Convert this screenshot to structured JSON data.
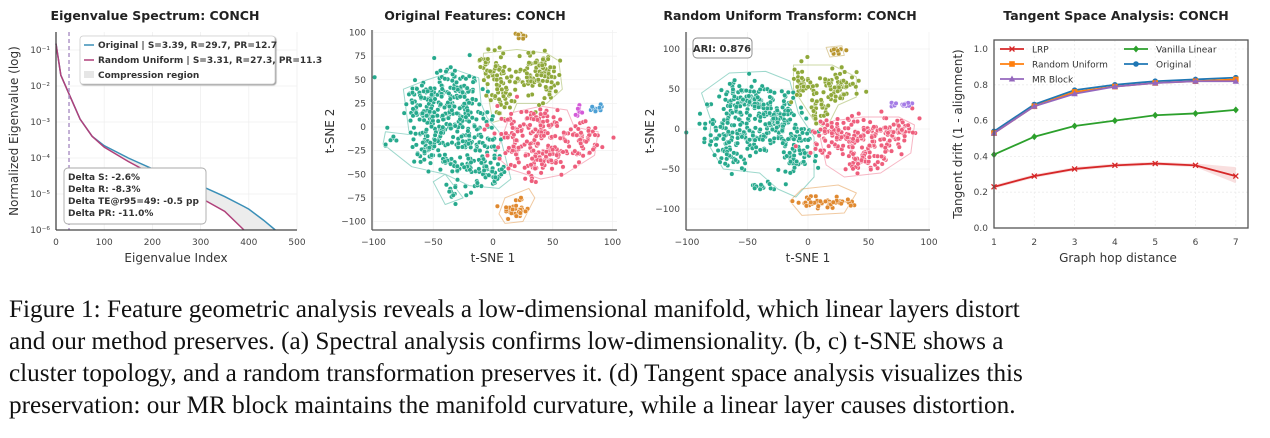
{
  "caption": {
    "lines": [
      "Figure 1: Feature geometric analysis reveals a low-dimensional manifold, which linear layers distort",
      "and our method preserves. (a) Spectral analysis confirms low-dimensionality. (b, c) t-SNE shows a",
      "cluster topology, and a random transformation preserves it. (d) Tangent space analysis visualizes this",
      "preservation: our MR block maintains the manifold curvature, while a linear layer causes distortion."
    ]
  },
  "panels": {
    "a": {
      "title": "Eigenvalue Spectrum: CONCH",
      "xlabel": "Eigenvalue Index",
      "ylabel": "Normalized Eigenvalue (log)",
      "xticks": [
        "0",
        "100",
        "200",
        "300",
        "400",
        "500"
      ],
      "yticks": [
        "10⁻¹",
        "10⁻²",
        "10⁻³",
        "10⁻⁴",
        "10⁻⁵",
        "10⁻⁶"
      ],
      "legend": [
        {
          "label": "Original | S=3.39, R=29.7, PR=12.7",
          "color": "#3a8fb7"
        },
        {
          "label": "Random Uniform | S=3.31, R=27.3, PR=11.3",
          "color": "#b0407a"
        },
        {
          "label": "Compression region",
          "color": "#e6e6e6"
        }
      ],
      "stats": [
        "Delta S: -2.6%",
        "Delta R: -8.3%",
        "Delta TE@r95=49: -0.5 pp",
        "Delta PR: -11.0%"
      ]
    },
    "b": {
      "title": "Original Features: CONCH",
      "xlabel": "t-SNE 1",
      "ylabel": "t-SNE 2",
      "xticks": [
        "−100",
        "−50",
        "0",
        "50",
        "100"
      ],
      "yticks": [
        "100",
        "75",
        "50",
        "25",
        "0",
        "−25",
        "−50",
        "−75",
        "−100"
      ]
    },
    "c": {
      "title": "Random Uniform Transform: CONCH",
      "xlabel": "t-SNE 1",
      "ylabel": "t-SNE 2",
      "xticks": [
        "−100",
        "−50",
        "0",
        "50",
        "100"
      ],
      "yticks": [
        "100",
        "50",
        "0",
        "−50",
        "−100"
      ],
      "ari": "ARI: 0.876"
    },
    "d": {
      "title": "Tangent Space Analysis: CONCH",
      "xlabel": "Graph hop distance",
      "ylabel": "Tangent drift (1 - alignment)",
      "xticks": [
        "1",
        "2",
        "3",
        "4",
        "5",
        "6",
        "7"
      ],
      "yticks": [
        "1.0",
        "0.8",
        "0.6",
        "0.4",
        "0.2",
        "0.0"
      ],
      "legend": [
        {
          "label": "LRP",
          "color": "#d62728",
          "marker": "x"
        },
        {
          "label": "Vanilla Linear",
          "color": "#2ca02c",
          "marker": "D"
        },
        {
          "label": "Random Uniform",
          "color": "#ff7f0e",
          "marker": "s"
        },
        {
          "label": "Original",
          "color": "#1f77b4",
          "marker": "o"
        },
        {
          "label": "MR Block",
          "color": "#9467bd",
          "marker": "^"
        }
      ]
    }
  },
  "chart_data": [
    {
      "type": "line",
      "title": "Eigenvalue Spectrum: CONCH",
      "xlabel": "Eigenvalue Index",
      "ylabel": "Normalized Eigenvalue (log)",
      "xlim": [
        0,
        500
      ],
      "ylim": [
        1e-06,
        0.3
      ],
      "yscale": "log",
      "vline_x": 27,
      "x": [
        0,
        10,
        27,
        50,
        75,
        100,
        150,
        200,
        250,
        300,
        350,
        390,
        400,
        430,
        455
      ],
      "series": [
        {
          "name": "Original | S=3.39, R=29.7, PR=12.7",
          "values": [
            0.15,
            0.02,
            0.006,
            0.0012,
            0.0004,
            0.00022,
            0.0001,
            5e-05,
            2.8e-05,
            1.7e-05,
            8.5e-06,
            4.5e-06,
            3.8e-06,
            1.9e-06,
            1e-06
          ]
        },
        {
          "name": "Random Uniform | S=3.31, R=27.3, PR=11.3",
          "values": [
            0.15,
            0.02,
            0.006,
            0.0012,
            0.0004,
            0.0002,
            8e-05,
            3.5e-05,
            1.6e-05,
            7.8e-06,
            3.3e-06,
            1e-06,
            null,
            null,
            null
          ]
        }
      ],
      "fill": "Compression region",
      "annotation": [
        "Delta S: -2.6%",
        "Delta R: -8.3%",
        "Delta TE@r95=49: -0.5 pp",
        "Delta PR: -11.0%"
      ],
      "legend_position": "upper right",
      "grid": true
    },
    {
      "type": "scatter",
      "title": "Original Features: CONCH",
      "xlabel": "t-SNE 1",
      "ylabel": "t-SNE 2",
      "xlim": [
        -100,
        100
      ],
      "ylim": [
        -105,
        100
      ],
      "clusters": [
        {
          "name": "teal",
          "color": "#26a98d",
          "center": [
            -40,
            5
          ],
          "approx_points": 700
        },
        {
          "name": "olive",
          "color": "#8fa83a",
          "center": [
            15,
            50
          ],
          "approx_points": 250
        },
        {
          "name": "pink",
          "color": "#ee5e7c",
          "center": [
            45,
            -15
          ],
          "approx_points": 450
        },
        {
          "name": "orange",
          "color": "#e0892f",
          "center": [
            18,
            -87
          ],
          "approx_points": 50
        },
        {
          "name": "gold",
          "color": "#b8952e",
          "center": [
            23,
            98
          ],
          "approx_points": 12
        },
        {
          "name": "magenta",
          "color": "#d45ad8",
          "center": [
            72,
            16
          ],
          "approx_points": 8
        },
        {
          "name": "blue",
          "color": "#4b9fd4",
          "center": [
            86,
            20
          ],
          "approx_points": 10
        }
      ]
    },
    {
      "type": "scatter",
      "title": "Random Uniform Transform: CONCH",
      "xlabel": "t-SNE 1",
      "ylabel": "t-SNE 2",
      "xlim": [
        -100,
        100
      ],
      "ylim": [
        -125,
        120
      ],
      "annotation": "ARI: 0.876",
      "clusters": [
        {
          "name": "teal",
          "color": "#26a98d",
          "center": [
            -45,
            0
          ],
          "approx_points": 700
        },
        {
          "name": "olive",
          "color": "#8fa83a",
          "center": [
            10,
            50
          ],
          "approx_points": 250
        },
        {
          "name": "pink",
          "color": "#ee5e7c",
          "center": [
            50,
            -15
          ],
          "approx_points": 450
        },
        {
          "name": "orange",
          "color": "#e0892f",
          "center": [
            10,
            -92
          ],
          "approx_points": 50
        },
        {
          "name": "gold",
          "color": "#b8952e",
          "center": [
            23,
            98
          ],
          "approx_points": 10
        },
        {
          "name": "violet",
          "color": "#a57ce6",
          "center": [
            75,
            30
          ],
          "approx_points": 14
        }
      ]
    },
    {
      "type": "line",
      "title": "Tangent Space Analysis: CONCH",
      "xlabel": "Graph hop distance",
      "ylabel": "Tangent drift (1 - alignment)",
      "x": [
        1,
        2,
        3,
        4,
        5,
        6,
        7
      ],
      "xlim": [
        1,
        7.3
      ],
      "ylim": [
        0,
        1.05
      ],
      "series": [
        {
          "name": "LRP",
          "values": [
            0.23,
            0.29,
            0.33,
            0.35,
            0.36,
            0.35,
            0.29
          ],
          "band": [
            [
              0.22,
              0.24
            ],
            [
              0.28,
              0.3
            ],
            [
              0.32,
              0.34
            ],
            [
              0.34,
              0.36
            ],
            [
              0.35,
              0.37
            ],
            [
              0.34,
              0.36
            ],
            [
              0.25,
              0.34
            ]
          ]
        },
        {
          "name": "Vanilla Linear",
          "values": [
            0.41,
            0.51,
            0.57,
            0.6,
            0.63,
            0.64,
            0.66
          ]
        },
        {
          "name": "Random Uniform",
          "values": [
            0.53,
            0.68,
            0.76,
            0.79,
            0.81,
            0.82,
            0.83
          ]
        },
        {
          "name": "Original",
          "values": [
            0.54,
            0.69,
            0.77,
            0.8,
            0.82,
            0.83,
            0.84
          ]
        },
        {
          "name": "MR Block",
          "values": [
            0.53,
            0.68,
            0.75,
            0.79,
            0.81,
            0.82,
            0.82
          ]
        }
      ],
      "legend_position": "upper left, 2 columns",
      "grid": true
    }
  ]
}
